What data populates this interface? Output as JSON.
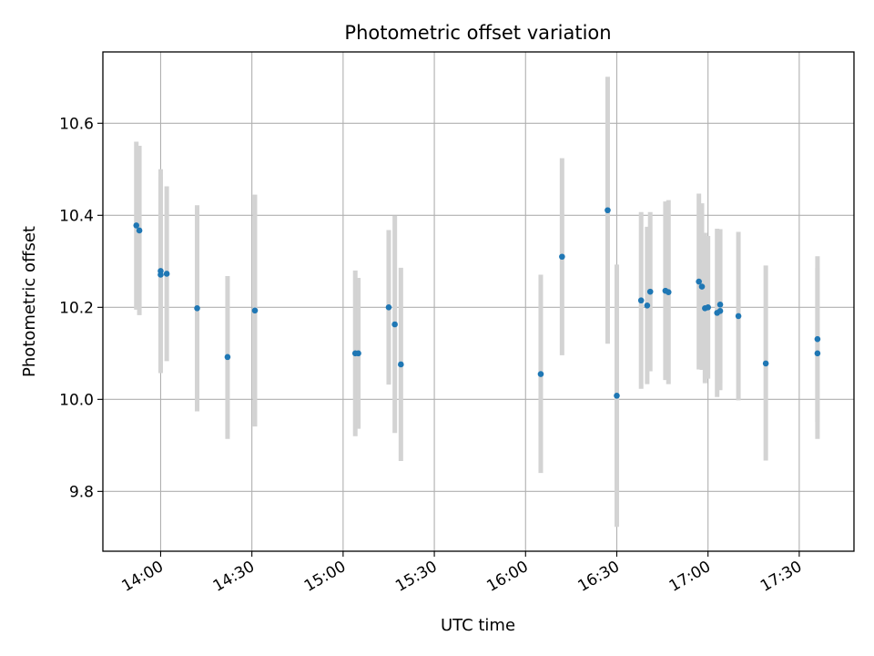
{
  "chart_data": {
    "type": "scatter",
    "title": "Photometric offset variation",
    "xlabel": "UTC time",
    "ylabel": "Photometric offset",
    "x_is_time": true,
    "xlim": [
      "13:41",
      "17:48"
    ],
    "ylim": [
      9.67,
      10.755
    ],
    "xticks": [
      "14:00",
      "14:30",
      "15:00",
      "15:30",
      "16:00",
      "16:30",
      "17:00",
      "17:30"
    ],
    "yticks": [
      9.8,
      10.0,
      10.2,
      10.4,
      10.6
    ],
    "grid": true,
    "colors": {
      "point": "#1f77b4",
      "errorbar": "#d3d3d3",
      "grid": "#b0b0b0"
    },
    "points": [
      {
        "time": "13:52",
        "y": 10.378,
        "ylo": 10.195,
        "yhi": 10.56
      },
      {
        "time": "13:53",
        "y": 10.367,
        "ylo": 10.183,
        "yhi": 10.551
      },
      {
        "time": "14:00",
        "y": 10.279,
        "ylo": 10.058,
        "yhi": 10.5
      },
      {
        "time": "14:00",
        "y": 10.271,
        "ylo": 10.057,
        "yhi": 10.485
      },
      {
        "time": "14:02",
        "y": 10.273,
        "ylo": 10.083,
        "yhi": 10.463
      },
      {
        "time": "14:12",
        "y": 10.198,
        "ylo": 9.974,
        "yhi": 10.422
      },
      {
        "time": "14:22",
        "y": 10.092,
        "ylo": 9.914,
        "yhi": 10.268
      },
      {
        "time": "14:31",
        "y": 10.193,
        "ylo": 9.941,
        "yhi": 10.445
      },
      {
        "time": "15:04",
        "y": 10.1,
        "ylo": 9.92,
        "yhi": 10.28
      },
      {
        "time": "15:05",
        "y": 10.1,
        "ylo": 9.936,
        "yhi": 10.264
      },
      {
        "time": "15:15",
        "y": 10.2,
        "ylo": 10.032,
        "yhi": 10.368
      },
      {
        "time": "15:17",
        "y": 10.163,
        "ylo": 9.927,
        "yhi": 10.399
      },
      {
        "time": "15:19",
        "y": 10.076,
        "ylo": 9.866,
        "yhi": 10.286
      },
      {
        "time": "16:05",
        "y": 10.055,
        "ylo": 9.84,
        "yhi": 10.271
      },
      {
        "time": "16:12",
        "y": 10.31,
        "ylo": 10.096,
        "yhi": 10.524
      },
      {
        "time": "16:27",
        "y": 10.411,
        "ylo": 10.121,
        "yhi": 10.701
      },
      {
        "time": "16:30",
        "y": 10.008,
        "ylo": 9.723,
        "yhi": 10.293
      },
      {
        "time": "16:38",
        "y": 10.215,
        "ylo": 10.023,
        "yhi": 10.407
      },
      {
        "time": "16:40",
        "y": 10.204,
        "ylo": 10.033,
        "yhi": 10.375
      },
      {
        "time": "16:41",
        "y": 10.234,
        "ylo": 10.061,
        "yhi": 10.407
      },
      {
        "time": "16:46",
        "y": 10.236,
        "ylo": 10.042,
        "yhi": 10.43
      },
      {
        "time": "16:47",
        "y": 10.233,
        "ylo": 10.033,
        "yhi": 10.433
      },
      {
        "time": "16:57",
        "y": 10.256,
        "ylo": 10.065,
        "yhi": 10.447
      },
      {
        "time": "16:58",
        "y": 10.245,
        "ylo": 10.064,
        "yhi": 10.426
      },
      {
        "time": "16:59",
        "y": 10.198,
        "ylo": 10.035,
        "yhi": 10.362
      },
      {
        "time": "17:00",
        "y": 10.2,
        "ylo": 10.045,
        "yhi": 10.355
      },
      {
        "time": "17:03",
        "y": 10.188,
        "ylo": 10.005,
        "yhi": 10.371
      },
      {
        "time": "17:04",
        "y": 10.206,
        "ylo": 10.035,
        "yhi": 10.37
      },
      {
        "time": "17:04",
        "y": 10.192,
        "ylo": 10.02,
        "yhi": 10.37
      },
      {
        "time": "17:10",
        "y": 10.181,
        "ylo": 9.998,
        "yhi": 10.364
      },
      {
        "time": "17:19",
        "y": 10.078,
        "ylo": 9.867,
        "yhi": 10.291
      },
      {
        "time": "17:36",
        "y": 10.1,
        "ylo": 9.914,
        "yhi": 10.286
      },
      {
        "time": "17:36",
        "y": 10.131,
        "ylo": 9.951,
        "yhi": 10.311
      }
    ]
  }
}
